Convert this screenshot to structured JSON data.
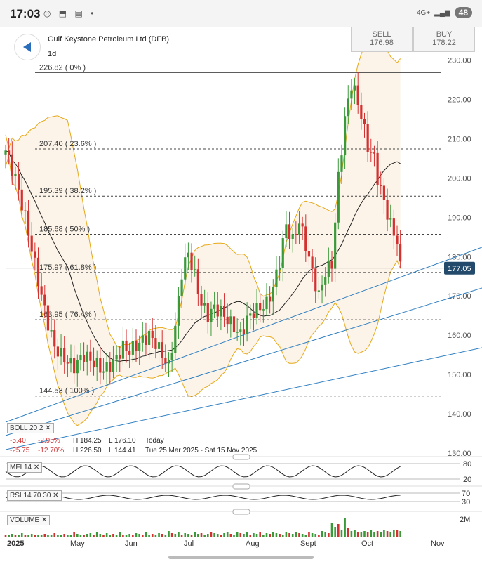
{
  "status": {
    "time": "17:03",
    "signal": "4G+",
    "battery": "48"
  },
  "header": {
    "instrument": "Gulf Keystone Petroleum Ltd (DFB)",
    "timeframe": "1d",
    "sell_label": "SELL",
    "sell_price": "176.98",
    "buy_label": "BUY",
    "buy_price": "178.22"
  },
  "colors": {
    "up": "#3a9a3a",
    "down": "#d33030",
    "band": "#e6a817",
    "trend": "#2f7fc1",
    "price_tag": "#234a6b"
  },
  "chart_data": {
    "type": "candlestick",
    "x_ticks": [
      "2025",
      "May",
      "Jun",
      "Jul",
      "Aug",
      "Sept",
      "Oct",
      "Nov"
    ],
    "y_ticks": [
      130,
      140,
      150,
      160,
      170,
      180,
      190,
      200,
      210,
      220,
      230
    ],
    "ylim": [
      130,
      231
    ],
    "current_price": "177.05",
    "fib_levels": [
      {
        "label": "226.82 ( 0% )",
        "value": 226.82
      },
      {
        "label": "207.40 ( 23.6% )",
        "value": 207.4
      },
      {
        "label": "195.39 ( 38.2% )",
        "value": 195.39
      },
      {
        "label": "185.68 ( 50% )",
        "value": 185.68
      },
      {
        "label": "175.97 ( 61.8% )",
        "value": 175.97
      },
      {
        "label": "163.95 ( 76.4% )",
        "value": 163.95
      },
      {
        "label": "144.53 ( 100% )",
        "value": 144.53
      }
    ],
    "close_path": [
      [
        0,
        207
      ],
      [
        3,
        200
      ],
      [
        6,
        190
      ],
      [
        9,
        178
      ],
      [
        11,
        170
      ],
      [
        13,
        163
      ],
      [
        15,
        157
      ],
      [
        18,
        154
      ],
      [
        21,
        152
      ],
      [
        24,
        155
      ],
      [
        27,
        153
      ],
      [
        30,
        151
      ],
      [
        33,
        153
      ],
      [
        36,
        157
      ],
      [
        38,
        156
      ],
      [
        41,
        158
      ],
      [
        44,
        160
      ],
      [
        46,
        158
      ],
      [
        48,
        155
      ],
      [
        50,
        152
      ],
      [
        52,
        162
      ],
      [
        54,
        176
      ],
      [
        56,
        181
      ],
      [
        58,
        175
      ],
      [
        60,
        168
      ],
      [
        62,
        165
      ],
      [
        64,
        167
      ],
      [
        66,
        166
      ],
      [
        68,
        164
      ],
      [
        70,
        162
      ],
      [
        72,
        160
      ],
      [
        74,
        164
      ],
      [
        76,
        166
      ],
      [
        78,
        167
      ],
      [
        80,
        168
      ],
      [
        82,
        172
      ],
      [
        84,
        179
      ],
      [
        86,
        188
      ],
      [
        88,
        184
      ],
      [
        90,
        189
      ],
      [
        92,
        183
      ],
      [
        94,
        176
      ],
      [
        96,
        170
      ],
      [
        98,
        176
      ],
      [
        100,
        178
      ],
      [
        102,
        200
      ],
      [
        104,
        215
      ],
      [
        106,
        224
      ],
      [
        107,
        222
      ],
      [
        109,
        216
      ],
      [
        111,
        208
      ],
      [
        113,
        205
      ],
      [
        114,
        200
      ],
      [
        116,
        194
      ],
      [
        118,
        188
      ],
      [
        120,
        184
      ],
      [
        121,
        177
      ]
    ],
    "volume_heights": [
      3,
      2,
      4,
      2,
      3,
      5,
      2,
      3,
      4,
      2,
      3,
      2,
      4,
      3,
      2,
      5,
      3,
      2,
      4,
      2,
      3,
      6,
      4,
      3,
      2,
      4,
      5,
      3,
      7,
      4,
      3,
      5,
      2,
      4,
      3,
      6,
      3,
      2,
      4,
      3,
      5,
      4,
      3,
      6,
      2,
      4,
      3,
      5,
      4,
      3,
      8,
      5,
      4,
      6,
      3,
      5,
      4,
      3,
      6,
      4,
      5,
      3,
      4,
      6,
      5,
      4,
      3,
      5,
      6,
      4,
      3,
      7,
      5,
      4,
      6,
      3,
      5,
      4,
      6,
      3,
      5,
      4,
      6,
      5,
      4,
      3,
      6,
      5,
      4,
      7,
      5,
      4,
      3,
      6,
      5,
      4,
      3,
      8,
      6,
      5,
      20,
      14,
      18,
      10,
      26,
      12,
      8,
      9,
      7,
      6,
      8,
      7,
      9,
      6,
      8,
      7,
      9,
      8,
      6,
      9,
      10,
      8
    ]
  },
  "indicators": {
    "boll": {
      "name": "BOLL",
      "p1": "20",
      "p2": "2"
    },
    "ohlc": {
      "change": "-5.40",
      "change_pct": "-2.95%",
      "high": "H 184.25",
      "low": "L 176.10",
      "period_label": "Today",
      "change2": "-25.75",
      "change2_pct": "-12.70%",
      "high2": "H 226.50",
      "low2": "L 144.41",
      "range": "Tue 25 Mar 2025 - Sat 15 Nov 2025"
    },
    "mfi": {
      "name": "MFI",
      "period": "14",
      "levels": [
        "80",
        "20"
      ]
    },
    "rsi": {
      "name": "RSI",
      "period": "14",
      "high": "70",
      "low": "30",
      "levels": [
        "70",
        "30"
      ]
    },
    "volume": {
      "name": "VOLUME",
      "scale_label": "2M"
    }
  }
}
